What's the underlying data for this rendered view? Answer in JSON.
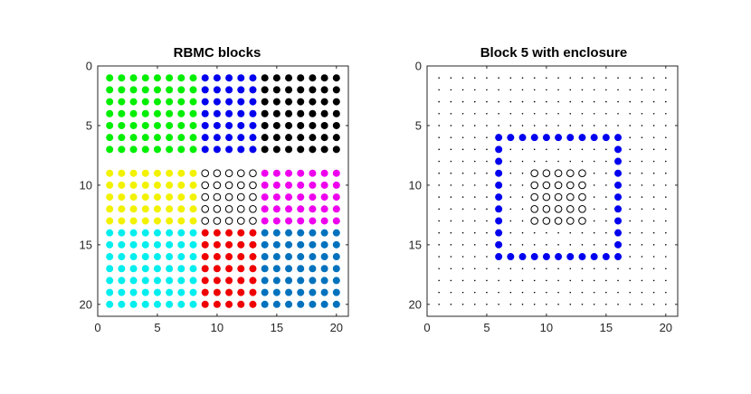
{
  "chart_data": [
    {
      "type": "scatter",
      "title": "RBMC blocks",
      "xlim": [
        0,
        21
      ],
      "ylim": [
        0,
        21
      ],
      "y_direction": "reversed",
      "xticks": [
        0,
        5,
        10,
        15,
        20
      ],
      "yticks": [
        0,
        5,
        10,
        15,
        20
      ],
      "grid": false,
      "blocks": [
        {
          "x_range": [
            1,
            8
          ],
          "y_range": [
            1,
            7
          ],
          "color": "#00ee00",
          "marker": "filled"
        },
        {
          "x_range": [
            9,
            13
          ],
          "y_range": [
            1,
            7
          ],
          "color": "#0000ee",
          "marker": "filled"
        },
        {
          "x_range": [
            14,
            20
          ],
          "y_range": [
            1,
            7
          ],
          "color": "#000000",
          "marker": "filled"
        },
        {
          "x_range": [
            1,
            8
          ],
          "y_range": [
            9,
            13
          ],
          "color": "#f2f200",
          "marker": "filled"
        },
        {
          "x_range": [
            9,
            13
          ],
          "y_range": [
            9,
            13
          ],
          "color": "#000000",
          "marker": "open"
        },
        {
          "x_range": [
            14,
            20
          ],
          "y_range": [
            9,
            13
          ],
          "color": "#ee00ee",
          "marker": "filled"
        },
        {
          "x_range": [
            1,
            8
          ],
          "y_range": [
            14,
            20
          ],
          "color": "#00eeee",
          "marker": "filled"
        },
        {
          "x_range": [
            9,
            13
          ],
          "y_range": [
            14,
            20
          ],
          "color": "#ee0000",
          "marker": "filled"
        },
        {
          "x_range": [
            14,
            20
          ],
          "y_range": [
            14,
            20
          ],
          "color": "#0072bd",
          "marker": "filled"
        }
      ]
    },
    {
      "type": "scatter",
      "title": "Block 5 with enclosure",
      "xlim": [
        0,
        21
      ],
      "ylim": [
        0,
        21
      ],
      "y_direction": "reversed",
      "xticks": [
        0,
        5,
        10,
        15,
        20
      ],
      "yticks": [
        0,
        5,
        10,
        15,
        20
      ],
      "grid": false,
      "background_grid": {
        "x_range": [
          1,
          20
        ],
        "y_range": [
          1,
          20
        ],
        "color": "#000000",
        "marker": "dot"
      },
      "block": {
        "x_range": [
          9,
          13
        ],
        "y_range": [
          9,
          13
        ],
        "color": "#000000",
        "marker": "open"
      },
      "enclosure": {
        "x_range": [
          6,
          16
        ],
        "y_range": [
          6,
          16
        ],
        "color": "#0000ee",
        "marker": "filled"
      }
    }
  ]
}
